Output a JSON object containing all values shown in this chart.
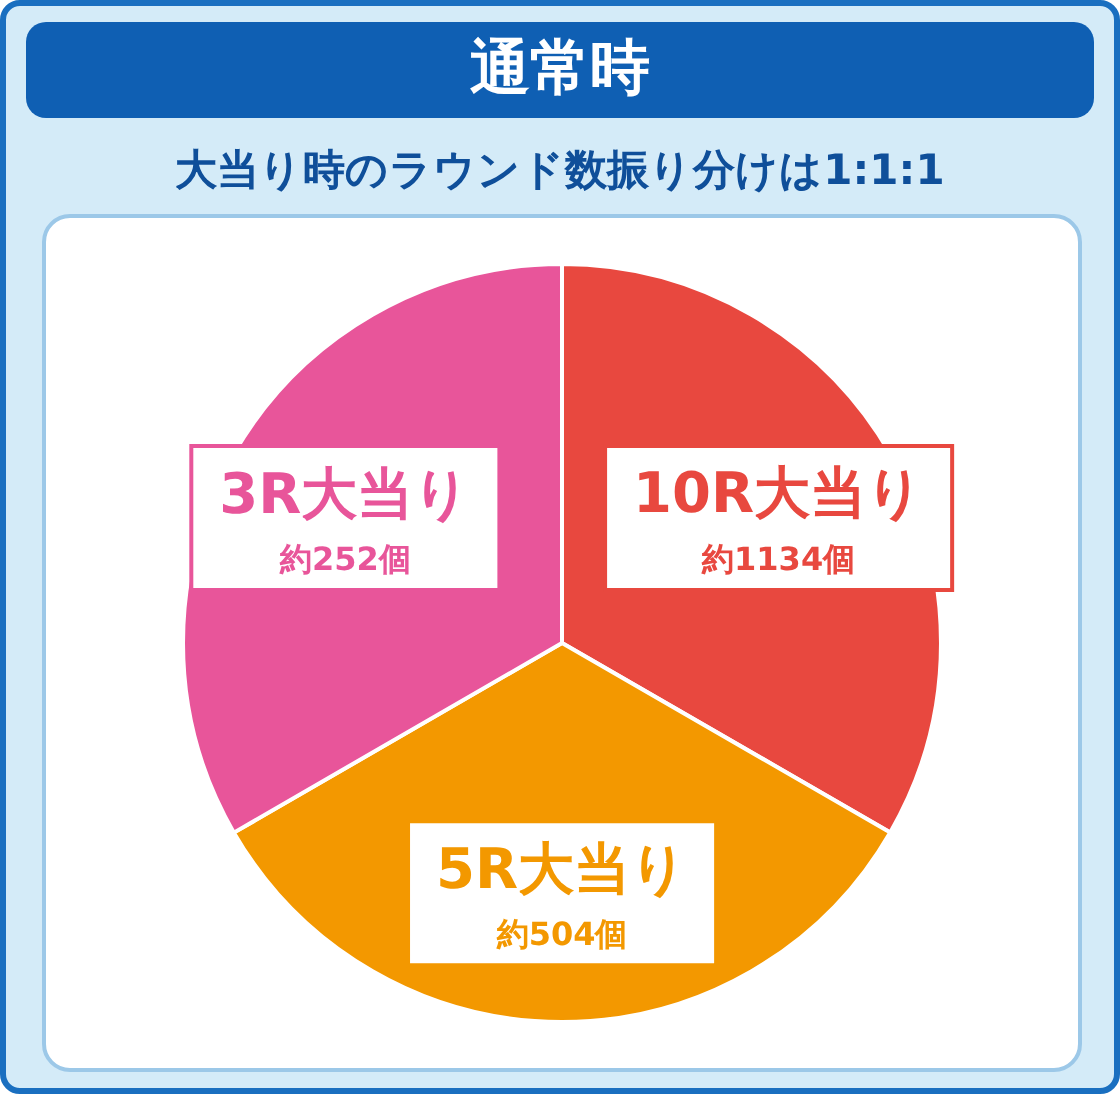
{
  "chart_data": {
    "type": "pie",
    "title": "通常時",
    "subtitle": "大当り時のラウンド数振り分けは1:1:1",
    "categories": [
      "10R大当り",
      "5R大当り",
      "3R大当り"
    ],
    "values": [
      33.33,
      33.33,
      33.34
    ],
    "value_labels": [
      "約1134個",
      "約504個",
      "約252個"
    ],
    "colors": [
      "#e8483f",
      "#f39800",
      "#e8559a"
    ],
    "legend": false
  }
}
